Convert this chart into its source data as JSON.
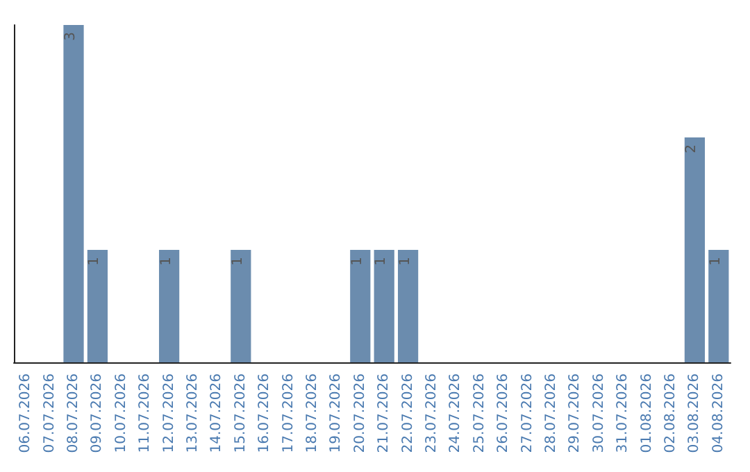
{
  "chart_data": {
    "type": "bar",
    "categories": [
      "06.07.2026",
      "07.07.2026",
      "08.07.2026",
      "09.07.2026",
      "10.07.2026",
      "11.07.2026",
      "12.07.2026",
      "13.07.2026",
      "14.07.2026",
      "15.07.2026",
      "16.07.2026",
      "17.07.2026",
      "18.07.2026",
      "19.07.2026",
      "20.07.2026",
      "21.07.2026",
      "22.07.2026",
      "23.07.2026",
      "24.07.2026",
      "25.07.2026",
      "26.07.2026",
      "27.07.2026",
      "28.07.2026",
      "29.07.2026",
      "30.07.2026",
      "31.07.2026",
      "01.08.2026",
      "02.08.2026",
      "03.08.2026",
      "04.08.2026"
    ],
    "values": [
      0,
      0,
      3,
      1,
      0,
      0,
      1,
      0,
      0,
      1,
      0,
      0,
      0,
      0,
      1,
      1,
      1,
      0,
      0,
      0,
      0,
      0,
      0,
      0,
      0,
      0,
      0,
      0,
      2,
      1
    ],
    "value_labels": [
      null,
      null,
      "3",
      "1",
      null,
      null,
      "1",
      null,
      null,
      "1",
      null,
      null,
      null,
      null,
      "1",
      "1",
      "1",
      null,
      null,
      null,
      null,
      null,
      null,
      null,
      null,
      null,
      null,
      null,
      "2",
      "1"
    ],
    "color": "#6b8cae",
    "ylim": [
      0,
      3
    ],
    "tick_labels": "x",
    "grid": false
  }
}
